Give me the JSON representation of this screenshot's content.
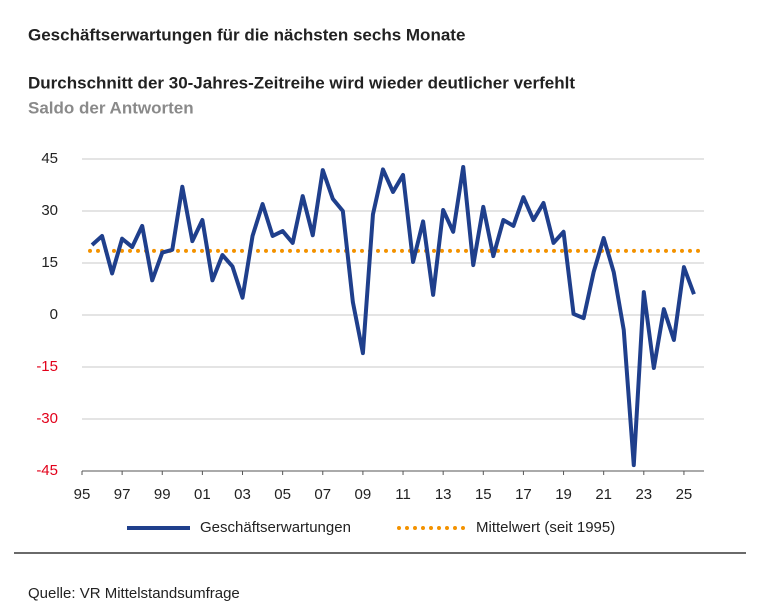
{
  "header": "Geschäftserwartungen für die nächsten sechs Monate",
  "chart_data": {
    "type": "line",
    "title": "Durchschnitt der 30-Jahres-Zeitreihe wird wieder deutlicher verfehlt",
    "subtitle": "Saldo der Antworten",
    "x": [
      1995.5,
      1996,
      1996.5,
      1997,
      1997.5,
      1998,
      1998.5,
      1999,
      1999.5,
      2000,
      2000.5,
      2001,
      2001.5,
      2002,
      2002.5,
      2003,
      2003.5,
      2004,
      2004.5,
      2005,
      2005.5,
      2006,
      2006.5,
      2007,
      2007.5,
      2008,
      2008.5,
      2009,
      2009.5,
      2010,
      2010.5,
      2011,
      2011.5,
      2012,
      2012.5,
      2013,
      2013.5,
      2014,
      2014.5,
      2015,
      2015.5,
      2016,
      2016.5,
      2017,
      2017.5,
      2018,
      2018.5,
      2019,
      2019.5,
      2020,
      2020.5,
      2021,
      2021.5,
      2022,
      2022.5,
      2023,
      2023.5,
      2024,
      2024.5,
      2025,
      2025.5
    ],
    "series": [
      {
        "name": "Geschäftserwartungen",
        "color": "#1f3f8c",
        "values": [
          20.2,
          22.8,
          12,
          22,
          19.6,
          25.7,
          10,
          18,
          18.8,
          37,
          21.3,
          27.4,
          10,
          17.3,
          14,
          5,
          22.8,
          32,
          22.8,
          24.2,
          20.8,
          34.3,
          23,
          41.8,
          33.5,
          30,
          3.7,
          -11,
          29,
          42,
          35.5,
          40.4,
          15.3,
          27,
          5.8,
          30.3,
          24,
          42.7,
          14.4,
          31.2,
          17,
          27.4,
          25.7,
          34,
          27.4,
          32.3,
          20.8,
          24,
          0.3,
          -0.9,
          12.4,
          22.2,
          12.4,
          -4.3,
          -43.3,
          6.6,
          -15.3,
          1.7,
          -7.2,
          13.8,
          6
        ]
      }
    ],
    "mean_line": {
      "name": "Mittelwert (seit 1995)",
      "value": 18.5,
      "color": "#f39200"
    },
    "xlim": [
      1995,
      2026
    ],
    "xticks": [
      {
        "value": 1995,
        "label": "95"
      },
      {
        "value": 1997,
        "label": "97"
      },
      {
        "value": 1999,
        "label": "99"
      },
      {
        "value": 2001,
        "label": "01"
      },
      {
        "value": 2003,
        "label": "03"
      },
      {
        "value": 2005,
        "label": "05"
      },
      {
        "value": 2007,
        "label": "07"
      },
      {
        "value": 2009,
        "label": "09"
      },
      {
        "value": 2011,
        "label": "11"
      },
      {
        "value": 2013,
        "label": "13"
      },
      {
        "value": 2015,
        "label": "15"
      },
      {
        "value": 2017,
        "label": "17"
      },
      {
        "value": 2019,
        "label": "19"
      },
      {
        "value": 2021,
        "label": "21"
      },
      {
        "value": 2023,
        "label": "23"
      },
      {
        "value": 2025,
        "label": "25"
      }
    ],
    "ylim": [
      -45,
      45
    ],
    "yticks": [
      -45,
      -30,
      -15,
      0,
      15,
      30,
      45
    ],
    "grid": true,
    "negative_tick_color": "#e2001a"
  },
  "source": "Quelle: VR Mittelstandsumfrage"
}
